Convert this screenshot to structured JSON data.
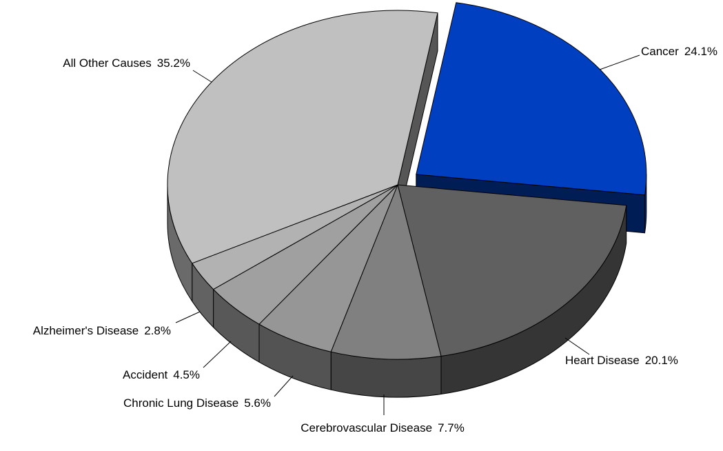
{
  "chart_data": {
    "type": "pie3d",
    "categories": [
      "Cancer",
      "Heart Disease",
      "Cerebrovascular Disease",
      "Chronic Lung Disease",
      "Accident",
      "Alzheimer's Disease",
      "All Other Causes"
    ],
    "values": [
      24.1,
      20.1,
      7.7,
      5.6,
      4.5,
      2.8,
      35.2
    ],
    "value_labels": [
      "24.1%",
      "20.1%",
      "7.7%",
      "5.6%",
      "4.5%",
      "2.8%",
      "35.2%"
    ],
    "colors": [
      "#0040c0",
      "#606060",
      "#808080",
      "#969696",
      "#a0a0a0",
      "#b2b2b2",
      "#c0c0c0"
    ]
  }
}
